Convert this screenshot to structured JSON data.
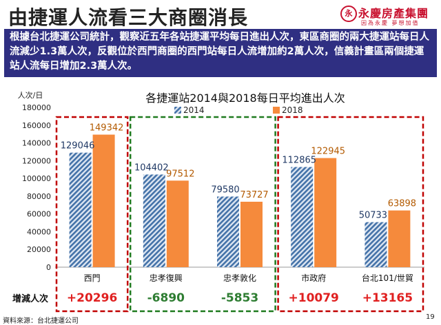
{
  "header": {
    "title": "由捷運人流看三大商圈消長",
    "logo_mark": "永",
    "logo_name": "永慶房產集團",
    "logo_slogan": "因為永慶 夢想加值"
  },
  "banner": {
    "text": "根據台北捷運公司統計，觀察近五年各站捷運平均每日進出人次，東區商圈的兩大捷運站每日人流減少1.3萬人次，反觀位於西門商圈的西門站每日人流增加約2萬人次，信義計畫區兩個捷運站人流每日增加2.3萬人次。"
  },
  "chart_data": {
    "type": "bar",
    "title": "各捷運站2014與2018每日平均進出人次",
    "ylabel": "人次/日",
    "ylim": [
      0,
      180000
    ],
    "yticks": [
      "0",
      "20000",
      "40000",
      "60000",
      "80000",
      "100000",
      "120000",
      "140000",
      "160000",
      "180000"
    ],
    "categories": [
      "西門",
      "忠孝復興",
      "忠孝敦化",
      "市政府",
      "台北101/世貿"
    ],
    "series": [
      {
        "name": "2014",
        "values": [
          129046,
          104402,
          79580,
          112865,
          50733
        ],
        "color": "#4472a8",
        "pattern": "diagonal-hatch"
      },
      {
        "name": "2018",
        "values": [
          149342,
          97512,
          73727,
          122945,
          63898
        ],
        "color": "#f58a3c"
      }
    ],
    "data_labels": true,
    "legend_position": "top",
    "change_row_label": "增減人次",
    "changes": [
      "+20296",
      "-6890",
      "-5853",
      "+10079",
      "+13165"
    ],
    "change_colors": [
      "#e02020",
      "#2e7d32",
      "#2e7d32",
      "#e02020",
      "#e02020"
    ],
    "group_boxes": [
      {
        "color": "#c00000",
        "categories": [
          0
        ]
      },
      {
        "color": "#1e7a1e",
        "categories": [
          1,
          2
        ]
      },
      {
        "color": "#c00000",
        "categories": [
          3,
          4
        ]
      }
    ]
  },
  "footer": {
    "source": "資料來源：台北捷運公司",
    "page": "19"
  }
}
